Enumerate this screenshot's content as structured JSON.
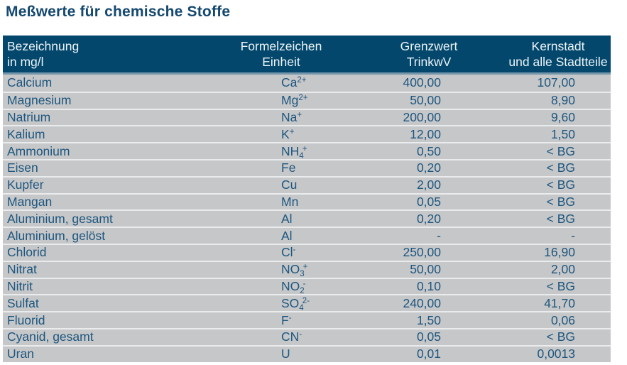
{
  "title": "Meßwerte für chemische Stoffe",
  "colors": {
    "title_color": "#14486f",
    "header_bg": "#03486c",
    "header_text": "#eef4f8",
    "divider": "#7396ab",
    "row_bg": "#c6c7c9",
    "separator": "#e9ebed",
    "text_color": "#1d567e"
  },
  "chart_data": {
    "type": "table",
    "title": "Meßwerte für chemische Stoffe",
    "columns": [
      "Bezeichnung in mg/l",
      "Formelzeichen Einheit",
      "Grenzwert TrinkwV",
      "Kernstadt und alle Stadtteile"
    ],
    "rows": [
      [
        "Calcium",
        "Ca²⁺",
        "400,00",
        "107,00"
      ],
      [
        "Magnesium",
        "Mg²⁺",
        "50,00",
        "8,90"
      ],
      [
        "Natrium",
        "Na⁺",
        "200,00",
        "9,60"
      ],
      [
        "Kalium",
        "K⁺",
        "12,00",
        "1,50"
      ],
      [
        "Ammonium",
        "NH₄⁺",
        "0,50",
        "< BG"
      ],
      [
        "Eisen",
        "Fe",
        "0,20",
        "< BG"
      ],
      [
        "Kupfer",
        "Cu",
        "2,00",
        "< BG"
      ],
      [
        "Mangan",
        "Mn",
        "0,05",
        "< BG"
      ],
      [
        "Aluminium, gesamt",
        "Al",
        "0,20",
        "< BG"
      ],
      [
        "Aluminium, gelöst",
        "Al",
        "-",
        "-"
      ],
      [
        "Chlorid",
        "Cl⁻",
        "250,00",
        "16,90"
      ],
      [
        "Nitrat",
        "NO₃⁺",
        "50,00",
        "2,00"
      ],
      [
        "Nitrit",
        "NO₂⁻",
        "0,10",
        "< BG"
      ],
      [
        "Sulfat",
        "SO₄²⁻",
        "240,00",
        "41,70"
      ],
      [
        "Fluorid",
        "F⁻",
        "1,50",
        "0,06"
      ],
      [
        "Cyanid, gesamt",
        "CN⁻",
        "0,05",
        "< BG"
      ],
      [
        "Uran",
        "U",
        "0,01",
        "0,0013"
      ]
    ]
  },
  "table": {
    "headers": [
      {
        "line1": "Bezeichnung",
        "line2": "in mg/l"
      },
      {
        "line1": "Formelzeichen",
        "line2": "Einheit"
      },
      {
        "line1": "Grenzwert",
        "line2": "TrinkwV"
      },
      {
        "line1": "Kernstadt",
        "line2": "und alle Stadtteile"
      }
    ],
    "rows": [
      {
        "name": "Calcium",
        "formula": {
          "base": "Ca",
          "sub": "",
          "sup": "2+"
        },
        "grenzwert": "400,00",
        "kernstadt": "107,00"
      },
      {
        "name": "Magnesium",
        "formula": {
          "base": "Mg",
          "sub": "",
          "sup": "2+"
        },
        "grenzwert": "50,00",
        "kernstadt": "8,90"
      },
      {
        "name": "Natrium",
        "formula": {
          "base": "Na",
          "sub": "",
          "sup": "+"
        },
        "grenzwert": "200,00",
        "kernstadt": "9,60"
      },
      {
        "name": "Kalium",
        "formula": {
          "base": "K",
          "sub": "",
          "sup": "+"
        },
        "grenzwert": "12,00",
        "kernstadt": "1,50"
      },
      {
        "name": "Ammonium",
        "formula": {
          "base": "NH",
          "sub": "4",
          "sup": "+"
        },
        "grenzwert": "0,50",
        "kernstadt": "< BG"
      },
      {
        "name": "Eisen",
        "formula": {
          "base": "Fe",
          "sub": "",
          "sup": ""
        },
        "grenzwert": "0,20",
        "kernstadt": "< BG"
      },
      {
        "name": "Kupfer",
        "formula": {
          "base": "Cu",
          "sub": "",
          "sup": ""
        },
        "grenzwert": "2,00",
        "kernstadt": "< BG"
      },
      {
        "name": "Mangan",
        "formula": {
          "base": "Mn",
          "sub": "",
          "sup": ""
        },
        "grenzwert": "0,05",
        "kernstadt": "< BG"
      },
      {
        "name": "Aluminium, gesamt",
        "formula": {
          "base": "Al",
          "sub": "",
          "sup": ""
        },
        "grenzwert": "0,20",
        "kernstadt": "< BG"
      },
      {
        "name": "Aluminium, gelöst",
        "formula": {
          "base": "Al",
          "sub": "",
          "sup": ""
        },
        "grenzwert": "-",
        "kernstadt": "-"
      },
      {
        "name": "Chlorid",
        "formula": {
          "base": "Cl",
          "sub": "",
          "sup": "-"
        },
        "grenzwert": "250,00",
        "kernstadt": "16,90"
      },
      {
        "name": "Nitrat",
        "formula": {
          "base": "NO",
          "sub": "3",
          "sup": "+"
        },
        "grenzwert": "50,00",
        "kernstadt": "2,00"
      },
      {
        "name": "Nitrit",
        "formula": {
          "base": "NO",
          "sub": "2",
          "sup": "-"
        },
        "grenzwert": "0,10",
        "kernstadt": "< BG"
      },
      {
        "name": "Sulfat",
        "formula": {
          "base": "SO",
          "sub": "4",
          "sup": "2-"
        },
        "grenzwert": "240,00",
        "kernstadt": "41,70"
      },
      {
        "name": "Fluorid",
        "formula": {
          "base": "F",
          "sub": "",
          "sup": "-"
        },
        "grenzwert": "1,50",
        "kernstadt": "0,06"
      },
      {
        "name": "Cyanid, gesamt",
        "formula": {
          "base": "CN",
          "sub": "",
          "sup": "-"
        },
        "grenzwert": "0,05",
        "kernstadt": "< BG"
      },
      {
        "name": "Uran",
        "formula": {
          "base": "U",
          "sub": "",
          "sup": ""
        },
        "grenzwert": "0,01",
        "kernstadt": "0,0013"
      }
    ]
  }
}
